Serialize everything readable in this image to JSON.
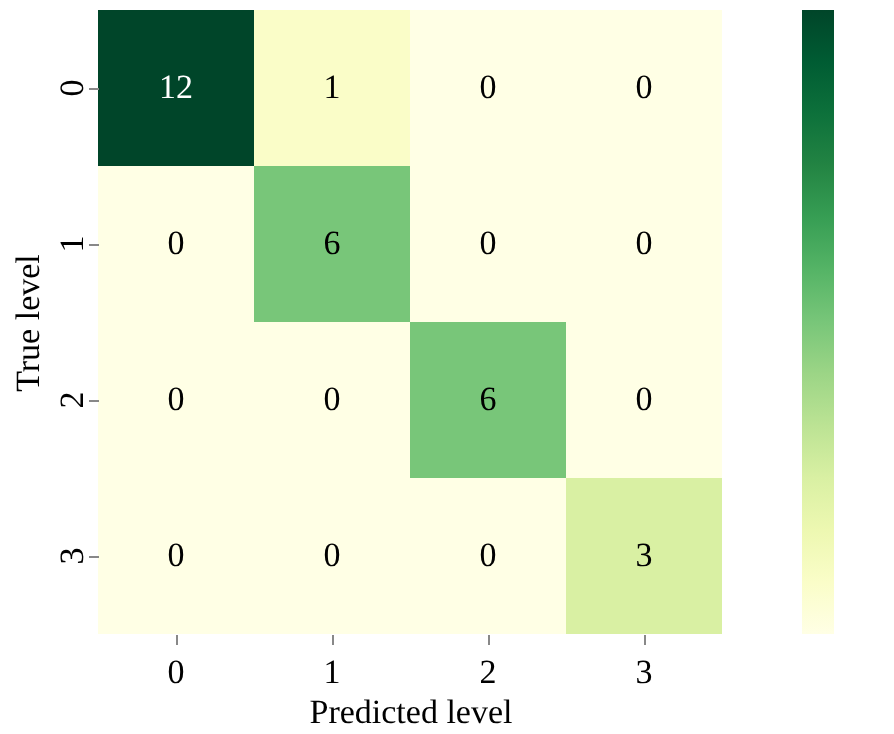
{
  "chart_data": {
    "type": "heatmap",
    "xlabel": "Predicted level",
    "ylabel": "True level",
    "categories": [
      "0",
      "1",
      "2",
      "3"
    ],
    "y_categories": [
      "0",
      "1",
      "2",
      "3"
    ],
    "cells": [
      [
        12,
        1,
        0,
        0
      ],
      [
        0,
        6,
        0,
        0
      ],
      [
        0,
        0,
        6,
        0
      ],
      [
        0,
        0,
        0,
        3
      ]
    ],
    "data_labels": true
  }
}
